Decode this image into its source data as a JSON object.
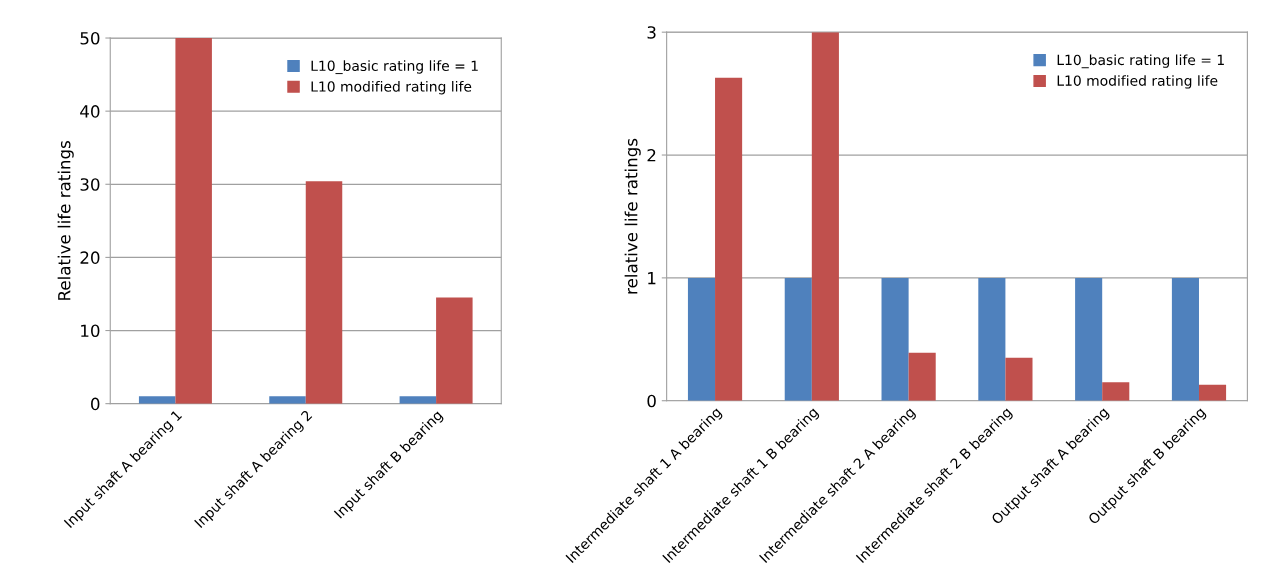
{
  "chart_data": [
    {
      "type": "bar",
      "ylabel": "Relative life ratings",
      "categories": [
        "Input shaft A bearing 1",
        "Input shaft A bearing 2",
        "Input shaft B bearing"
      ],
      "series": [
        {
          "name": "L10_basic rating life = 1",
          "color": "#4f81bd",
          "values": [
            1,
            1,
            1
          ]
        },
        {
          "name": "L10 modified rating life",
          "color": "#c0504d",
          "values": [
            50,
            30.4,
            14.5
          ]
        }
      ],
      "ylim": [
        0,
        50
      ],
      "yticks": [
        0,
        10,
        20,
        30,
        40,
        50
      ],
      "grid": "y",
      "legend": "top right"
    },
    {
      "type": "bar",
      "ylabel": "relative life ratings",
      "categories": [
        "Intermediate shaft 1 A bearing",
        "Intermediate shaft 1 B bearing",
        "Intermediate shaft 2 A bearing",
        "Intermediate shaft 2 B bearing",
        "Output shaft A bearing",
        "Output shaft B bearing"
      ],
      "series": [
        {
          "name": "L10_basic rating life = 1",
          "color": "#4f81bd",
          "values": [
            1,
            1,
            1,
            1,
            1,
            1
          ]
        },
        {
          "name": "L10 modified rating life",
          "color": "#c0504d",
          "values": [
            2.63,
            3.0,
            0.39,
            0.35,
            0.15,
            0.13
          ]
        }
      ],
      "ylim": [
        0,
        3
      ],
      "yticks": [
        0,
        1,
        2,
        3
      ],
      "grid": "y",
      "legend": "top right"
    }
  ]
}
